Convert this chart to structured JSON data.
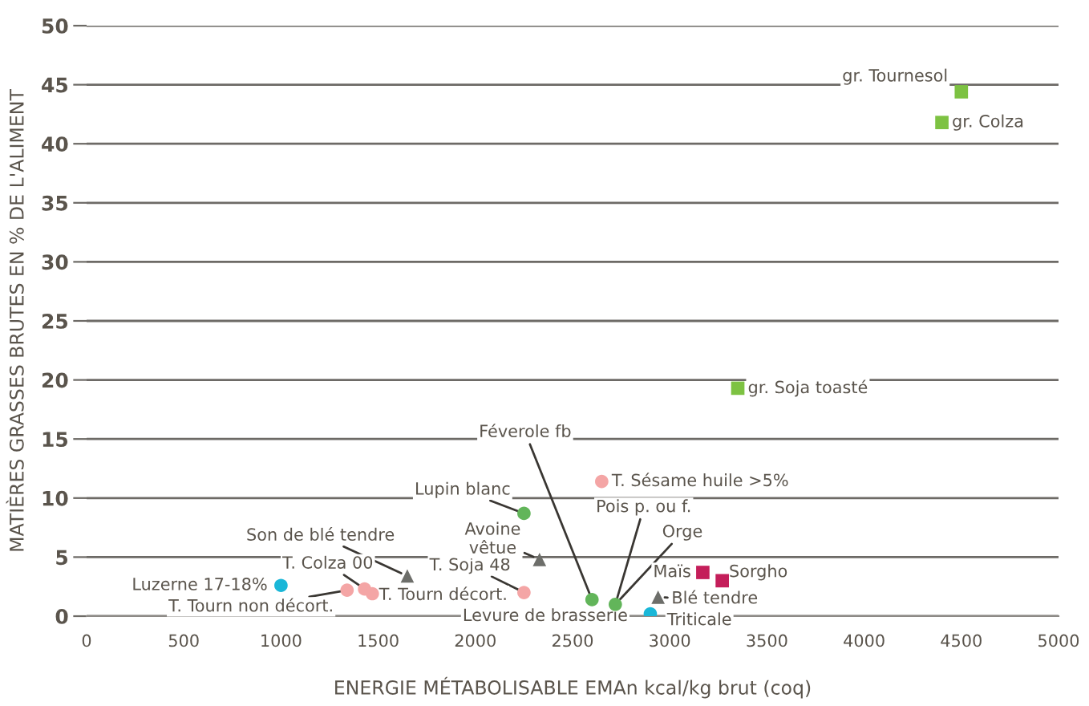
{
  "chart_data": {
    "type": "scatter",
    "xlabel": "ENERGIE MÉTABOLISABLE EMAn kcal/kg brut (coq)",
    "ylabel": "MATIÈRES GRASSES BRUTES EN % DE L'ALIMENT",
    "xlim": [
      0,
      5000
    ],
    "xticks": [
      0,
      500,
      1000,
      1500,
      2000,
      2500,
      3000,
      3500,
      4000,
      4500,
      5000
    ],
    "ylim": [
      0,
      50
    ],
    "yticks": [
      0,
      5,
      10,
      15,
      20,
      25,
      30,
      35,
      40,
      45,
      50
    ],
    "grid": "y",
    "legend": false,
    "series": [
      {
        "color": "#7dc242",
        "marker": "square",
        "x": [
          4500,
          4400,
          3350
        ],
        "values": [
          44.4,
          41.8,
          19.3
        ]
      },
      {
        "color": "#62b55a",
        "marker": "circle",
        "x": [
          2250,
          2600,
          2720
        ],
        "values": [
          8.7,
          1.4,
          1.0
        ]
      },
      {
        "color": "#f4a5a5",
        "marker": "circle",
        "x": [
          2650,
          2250,
          1430,
          1470,
          1340
        ],
        "values": [
          11.4,
          2.0,
          2.3,
          1.9,
          2.2
        ]
      },
      {
        "color": "#1ab7d8",
        "marker": "circle",
        "x": [
          1000,
          2900
        ],
        "values": [
          2.6,
          0.2
        ]
      },
      {
        "color": "#6d6e6a",
        "marker": "triangle",
        "x": [
          1650,
          2330,
          2940
        ],
        "values": [
          3.4,
          4.8,
          1.6
        ]
      },
      {
        "color": "#c41e5a",
        "marker": "square",
        "x": [
          3170,
          3270
        ],
        "values": [
          3.7,
          3.0
        ]
      }
    ],
    "annotations": [
      {
        "text": "gr. Tournesol",
        "x": 4500,
        "y": 44.4
      },
      {
        "text": "gr. Colza",
        "x": 4400,
        "y": 41.8
      },
      {
        "text": "gr. Soja toasté",
        "x": 3350,
        "y": 19.3
      },
      {
        "text": "Lupin blanc",
        "x": 2250,
        "y": 8.7
      },
      {
        "text": "Féverole fb",
        "x": 2600,
        "y": 1.4
      },
      {
        "text": "Levure de brasserie",
        "x": 2600,
        "y": 1.4
      },
      {
        "text": "Pois p. ou f.",
        "x": 2720,
        "y": 1.0
      },
      {
        "text": "Orge",
        "x": 2720,
        "y": 1.0
      },
      {
        "text": "T. Sésame huile >5%",
        "x": 2650,
        "y": 11.4
      },
      {
        "text": "T. Soja 48",
        "x": 2250,
        "y": 2.0
      },
      {
        "text": "Avoine\nvêtue",
        "x": 2330,
        "y": 4.8
      },
      {
        "text": "Son de blé tendre",
        "x": 1650,
        "y": 3.4
      },
      {
        "text": "T. Colza 00",
        "x": 1430,
        "y": 2.3
      },
      {
        "text": "T. Tourn décort.",
        "x": 1470,
        "y": 1.9
      },
      {
        "text": "T. Tourn non décort.",
        "x": 1340,
        "y": 2.2
      },
      {
        "text": "Luzerne 17-18%",
        "x": 1000,
        "y": 2.6
      },
      {
        "text": "Triticale",
        "x": 2900,
        "y": 0.2
      },
      {
        "text": "Blé tendre",
        "x": 2940,
        "y": 1.6
      },
      {
        "text": "Maïs",
        "x": 3170,
        "y": 3.7
      },
      {
        "text": "Sorgho",
        "x": 3270,
        "y": 3.0
      }
    ]
  }
}
